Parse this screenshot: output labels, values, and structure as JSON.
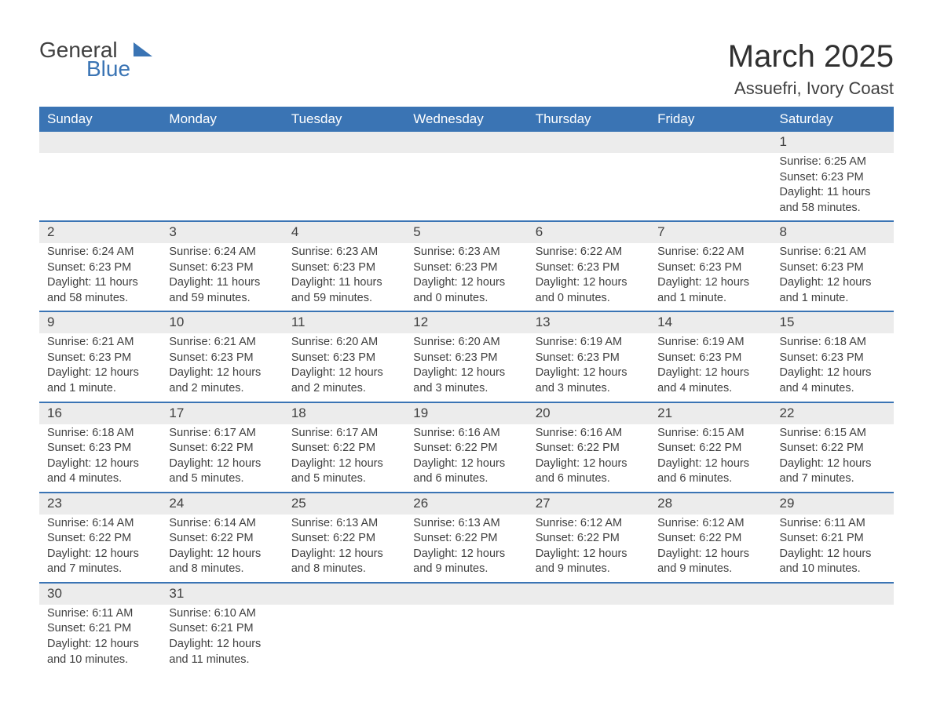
{
  "logo": {
    "line1": "General",
    "line2": "Blue"
  },
  "title": "March 2025",
  "location": "Assuefri, Ivory Coast",
  "colors": {
    "header_bg": "#3a74b4",
    "header_text": "#ffffff",
    "daynum_bg": "#ececec",
    "row_divider": "#3a74b4",
    "body_text": "#404040",
    "page_bg": "#ffffff"
  },
  "layout": {
    "columns": 7,
    "rows": 6,
    "font_family": "Arial",
    "title_fontsize_pt": 30,
    "location_fontsize_pt": 17,
    "dayheader_fontsize_pt": 13,
    "daynum_fontsize_pt": 13,
    "body_fontsize_pt": 11
  },
  "day_headers": [
    "Sunday",
    "Monday",
    "Tuesday",
    "Wednesday",
    "Thursday",
    "Friday",
    "Saturday"
  ],
  "weeks": [
    [
      null,
      null,
      null,
      null,
      null,
      null,
      {
        "n": "1",
        "sunrise": "Sunrise: 6:25 AM",
        "sunset": "Sunset: 6:23 PM",
        "daylight": "Daylight: 11 hours and 58 minutes."
      }
    ],
    [
      {
        "n": "2",
        "sunrise": "Sunrise: 6:24 AM",
        "sunset": "Sunset: 6:23 PM",
        "daylight": "Daylight: 11 hours and 58 minutes."
      },
      {
        "n": "3",
        "sunrise": "Sunrise: 6:24 AM",
        "sunset": "Sunset: 6:23 PM",
        "daylight": "Daylight: 11 hours and 59 minutes."
      },
      {
        "n": "4",
        "sunrise": "Sunrise: 6:23 AM",
        "sunset": "Sunset: 6:23 PM",
        "daylight": "Daylight: 11 hours and 59 minutes."
      },
      {
        "n": "5",
        "sunrise": "Sunrise: 6:23 AM",
        "sunset": "Sunset: 6:23 PM",
        "daylight": "Daylight: 12 hours and 0 minutes."
      },
      {
        "n": "6",
        "sunrise": "Sunrise: 6:22 AM",
        "sunset": "Sunset: 6:23 PM",
        "daylight": "Daylight: 12 hours and 0 minutes."
      },
      {
        "n": "7",
        "sunrise": "Sunrise: 6:22 AM",
        "sunset": "Sunset: 6:23 PM",
        "daylight": "Daylight: 12 hours and 1 minute."
      },
      {
        "n": "8",
        "sunrise": "Sunrise: 6:21 AM",
        "sunset": "Sunset: 6:23 PM",
        "daylight": "Daylight: 12 hours and 1 minute."
      }
    ],
    [
      {
        "n": "9",
        "sunrise": "Sunrise: 6:21 AM",
        "sunset": "Sunset: 6:23 PM",
        "daylight": "Daylight: 12 hours and 1 minute."
      },
      {
        "n": "10",
        "sunrise": "Sunrise: 6:21 AM",
        "sunset": "Sunset: 6:23 PM",
        "daylight": "Daylight: 12 hours and 2 minutes."
      },
      {
        "n": "11",
        "sunrise": "Sunrise: 6:20 AM",
        "sunset": "Sunset: 6:23 PM",
        "daylight": "Daylight: 12 hours and 2 minutes."
      },
      {
        "n": "12",
        "sunrise": "Sunrise: 6:20 AM",
        "sunset": "Sunset: 6:23 PM",
        "daylight": "Daylight: 12 hours and 3 minutes."
      },
      {
        "n": "13",
        "sunrise": "Sunrise: 6:19 AM",
        "sunset": "Sunset: 6:23 PM",
        "daylight": "Daylight: 12 hours and 3 minutes."
      },
      {
        "n": "14",
        "sunrise": "Sunrise: 6:19 AM",
        "sunset": "Sunset: 6:23 PM",
        "daylight": "Daylight: 12 hours and 4 minutes."
      },
      {
        "n": "15",
        "sunrise": "Sunrise: 6:18 AM",
        "sunset": "Sunset: 6:23 PM",
        "daylight": "Daylight: 12 hours and 4 minutes."
      }
    ],
    [
      {
        "n": "16",
        "sunrise": "Sunrise: 6:18 AM",
        "sunset": "Sunset: 6:23 PM",
        "daylight": "Daylight: 12 hours and 4 minutes."
      },
      {
        "n": "17",
        "sunrise": "Sunrise: 6:17 AM",
        "sunset": "Sunset: 6:22 PM",
        "daylight": "Daylight: 12 hours and 5 minutes."
      },
      {
        "n": "18",
        "sunrise": "Sunrise: 6:17 AM",
        "sunset": "Sunset: 6:22 PM",
        "daylight": "Daylight: 12 hours and 5 minutes."
      },
      {
        "n": "19",
        "sunrise": "Sunrise: 6:16 AM",
        "sunset": "Sunset: 6:22 PM",
        "daylight": "Daylight: 12 hours and 6 minutes."
      },
      {
        "n": "20",
        "sunrise": "Sunrise: 6:16 AM",
        "sunset": "Sunset: 6:22 PM",
        "daylight": "Daylight: 12 hours and 6 minutes."
      },
      {
        "n": "21",
        "sunrise": "Sunrise: 6:15 AM",
        "sunset": "Sunset: 6:22 PM",
        "daylight": "Daylight: 12 hours and 6 minutes."
      },
      {
        "n": "22",
        "sunrise": "Sunrise: 6:15 AM",
        "sunset": "Sunset: 6:22 PM",
        "daylight": "Daylight: 12 hours and 7 minutes."
      }
    ],
    [
      {
        "n": "23",
        "sunrise": "Sunrise: 6:14 AM",
        "sunset": "Sunset: 6:22 PM",
        "daylight": "Daylight: 12 hours and 7 minutes."
      },
      {
        "n": "24",
        "sunrise": "Sunrise: 6:14 AM",
        "sunset": "Sunset: 6:22 PM",
        "daylight": "Daylight: 12 hours and 8 minutes."
      },
      {
        "n": "25",
        "sunrise": "Sunrise: 6:13 AM",
        "sunset": "Sunset: 6:22 PM",
        "daylight": "Daylight: 12 hours and 8 minutes."
      },
      {
        "n": "26",
        "sunrise": "Sunrise: 6:13 AM",
        "sunset": "Sunset: 6:22 PM",
        "daylight": "Daylight: 12 hours and 9 minutes."
      },
      {
        "n": "27",
        "sunrise": "Sunrise: 6:12 AM",
        "sunset": "Sunset: 6:22 PM",
        "daylight": "Daylight: 12 hours and 9 minutes."
      },
      {
        "n": "28",
        "sunrise": "Sunrise: 6:12 AM",
        "sunset": "Sunset: 6:22 PM",
        "daylight": "Daylight: 12 hours and 9 minutes."
      },
      {
        "n": "29",
        "sunrise": "Sunrise: 6:11 AM",
        "sunset": "Sunset: 6:21 PM",
        "daylight": "Daylight: 12 hours and 10 minutes."
      }
    ],
    [
      {
        "n": "30",
        "sunrise": "Sunrise: 6:11 AM",
        "sunset": "Sunset: 6:21 PM",
        "daylight": "Daylight: 12 hours and 10 minutes."
      },
      {
        "n": "31",
        "sunrise": "Sunrise: 6:10 AM",
        "sunset": "Sunset: 6:21 PM",
        "daylight": "Daylight: 12 hours and 11 minutes."
      },
      null,
      null,
      null,
      null,
      null
    ]
  ]
}
